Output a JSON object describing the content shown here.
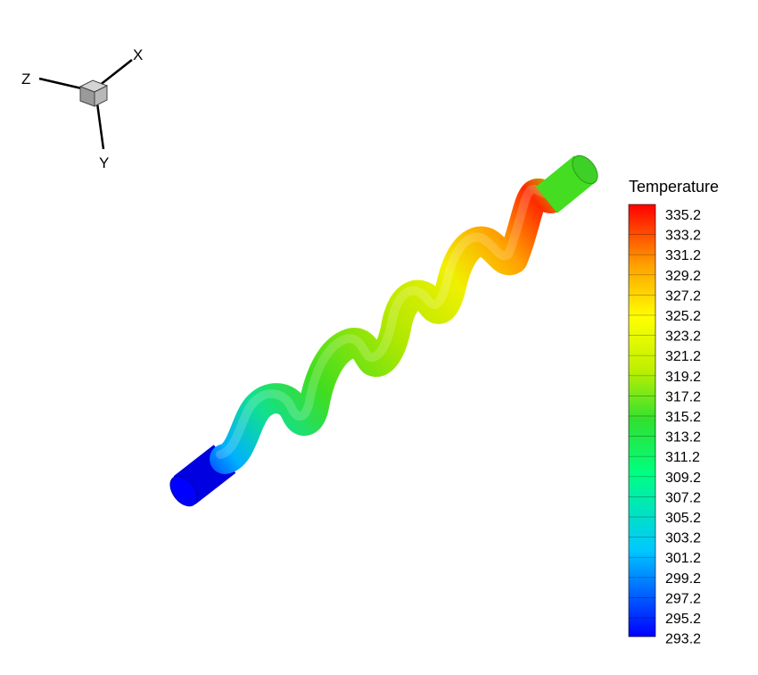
{
  "triad": {
    "x_label": "X",
    "y_label": "Y",
    "z_label": "Z"
  },
  "legend": {
    "title": "Temperature",
    "levels": [
      "335.2",
      "333.2",
      "331.2",
      "329.2",
      "327.2",
      "325.2",
      "323.2",
      "321.2",
      "319.2",
      "317.2",
      "315.2",
      "313.2",
      "311.2",
      "309.2",
      "307.2",
      "305.2",
      "303.2",
      "301.2",
      "299.2",
      "297.2",
      "295.2",
      "293.2"
    ],
    "min": 293.2,
    "max": 336.2,
    "colormap": [
      "#0000ff",
      "#00c8ff",
      "#00ff80",
      "#30e030",
      "#c0f000",
      "#ffff00",
      "#ffa000",
      "#ff0000"
    ]
  },
  "colors": {
    "inlet": "#0000ff",
    "outlet": "#40e030",
    "hot_spot": "#ff2000"
  }
}
